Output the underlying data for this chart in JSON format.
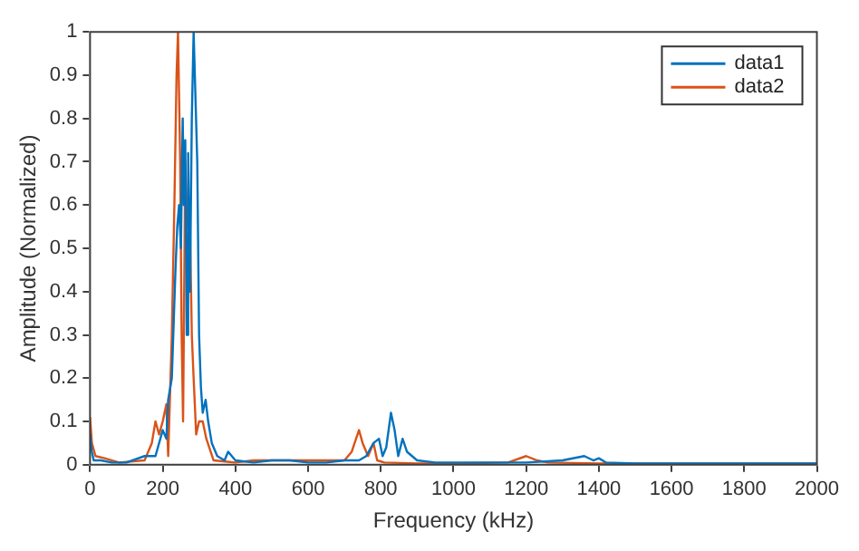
{
  "chart_data": {
    "type": "line",
    "xlabel": "Frequency (kHz)",
    "ylabel": "Amplitude (Normalized)",
    "xlim": [
      0,
      2000
    ],
    "xticks": [
      0,
      200,
      400,
      600,
      800,
      1000,
      1200,
      1400,
      1600,
      1800,
      2000
    ],
    "ylim": [
      0,
      1
    ],
    "yticks": [
      0,
      0.1,
      0.2,
      0.3,
      0.4,
      0.5,
      0.6,
      0.7,
      0.8,
      0.9,
      1
    ],
    "grid": false,
    "legend": "top right",
    "marker": "none",
    "line_style": "solid",
    "series": [
      {
        "name": "data1",
        "color": "#0072bd",
        "x": [
          0,
          5,
          10,
          30,
          60,
          100,
          150,
          180,
          200,
          210,
          215,
          225,
          235,
          240,
          245,
          250,
          255,
          258,
          262,
          266,
          270,
          275,
          280,
          285,
          290,
          295,
          300,
          305,
          310,
          318,
          325,
          335,
          350,
          370,
          380,
          400,
          450,
          500,
          550,
          600,
          650,
          700,
          740,
          760,
          780,
          795,
          805,
          815,
          828,
          838,
          848,
          860,
          872,
          900,
          950,
          1000,
          1100,
          1200,
          1300,
          1360,
          1385,
          1400,
          1420,
          1500,
          1700,
          2000
        ],
        "values": [
          0.07,
          0.03,
          0.01,
          0.01,
          0.005,
          0.005,
          0.02,
          0.02,
          0.08,
          0.06,
          0.15,
          0.2,
          0.45,
          0.55,
          0.6,
          0.5,
          0.8,
          0.6,
          0.75,
          0.3,
          0.72,
          0.4,
          0.8,
          1.0,
          0.85,
          0.7,
          0.3,
          0.18,
          0.12,
          0.15,
          0.1,
          0.05,
          0.02,
          0.01,
          0.03,
          0.01,
          0.005,
          0.01,
          0.01,
          0.005,
          0.005,
          0.01,
          0.01,
          0.02,
          0.05,
          0.06,
          0.02,
          0.04,
          0.12,
          0.08,
          0.02,
          0.06,
          0.03,
          0.01,
          0.005,
          0.005,
          0.005,
          0.005,
          0.01,
          0.02,
          0.01,
          0.015,
          0.005,
          0.003,
          0.003,
          0.003
        ]
      },
      {
        "name": "data2",
        "color": "#d95319",
        "x": [
          0,
          5,
          15,
          40,
          80,
          150,
          170,
          180,
          190,
          200,
          210,
          215,
          225,
          232,
          238,
          242,
          248,
          252,
          256,
          262,
          268,
          274,
          280,
          285,
          292,
          300,
          310,
          320,
          340,
          400,
          450,
          500,
          600,
          700,
          720,
          740,
          750,
          765,
          780,
          790,
          810,
          900,
          1000,
          1150,
          1200,
          1230,
          1260,
          1400,
          2000
        ],
        "values": [
          0.11,
          0.05,
          0.02,
          0.015,
          0.005,
          0.01,
          0.05,
          0.1,
          0.07,
          0.1,
          0.14,
          0.02,
          0.3,
          0.6,
          0.9,
          1.0,
          0.7,
          0.3,
          0.1,
          0.7,
          0.55,
          0.6,
          0.3,
          0.2,
          0.07,
          0.1,
          0.1,
          0.06,
          0.01,
          0.005,
          0.01,
          0.01,
          0.01,
          0.01,
          0.03,
          0.08,
          0.05,
          0.02,
          0.05,
          0.01,
          0.005,
          0.003,
          0.003,
          0.005,
          0.02,
          0.01,
          0.005,
          0.003,
          0.003
        ]
      }
    ]
  }
}
